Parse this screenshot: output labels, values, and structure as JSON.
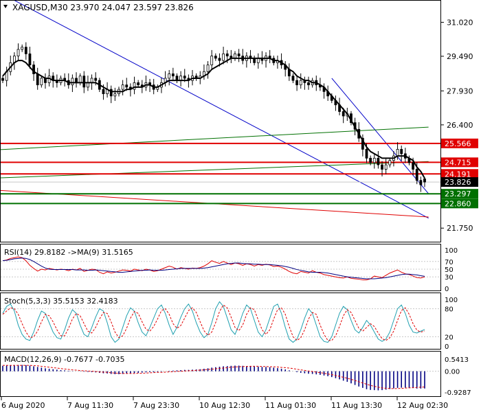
{
  "header": {
    "main": "XAGUSD,M30  23.970 24.047 23.597 23.826",
    "rsi": "RSI(14) 29.8182  ->MA(9) 31.5165",
    "stoch": "Stoch(5,3,3) 35.5153 32.4183",
    "macd": "MACD(12,26,9) -0.7677 -0.7035"
  },
  "colors": {
    "bull": "#000000",
    "bear": "#000000",
    "ma": "#000000",
    "channel": "#0000c8",
    "support_green": "#007000",
    "resistance_red": "#e00000",
    "rsi": "#e00000",
    "rsi_ma": "#000080",
    "stoch_main": "#20a0b0",
    "stoch_signal": "#e00000",
    "macd_hist": "#000080",
    "macd_signal": "#e00000",
    "grid": "#c8c8c8"
  },
  "chart_data": [
    {
      "type": "candlestick",
      "symbol": "XAGUSD",
      "timeframe": "M30",
      "ohlc_last": {
        "open": 23.97,
        "high": 24.047,
        "low": 23.597,
        "close": 23.826
      },
      "ylim": [
        21.2,
        31.9
      ],
      "y_ticks": [
        "31.020",
        "29.490",
        "27.930",
        "26.400",
        "21.750"
      ],
      "x_ticks": [
        "6 Aug 2020",
        "7 Aug 11:30",
        "7 Aug 23:30",
        "10 Aug 12:30",
        "11 Aug 01:30",
        "11 Aug 13:30",
        "12 Aug 02:30"
      ],
      "close_series": [
        28.4,
        28.8,
        29.2,
        29.5,
        29.8,
        29.9,
        29.6,
        29.1,
        28.7,
        28.2,
        28.5,
        28.3,
        28.6,
        28.4,
        28.3,
        28.5,
        28.4,
        28.2,
        28.5,
        28.3,
        28.6,
        28.1,
        28.3,
        28.5,
        28.4,
        28.0,
        27.8,
        28.0,
        27.7,
        27.8,
        28.0,
        28.2,
        28.1,
        28.0,
        28.3,
        28.2,
        28.1,
        28.3,
        28.2,
        28.0,
        28.1,
        28.3,
        28.5,
        28.7,
        28.6,
        28.4,
        28.6,
        28.5,
        28.4,
        28.6,
        28.5,
        28.6,
        28.8,
        29.1,
        29.5,
        29.4,
        29.3,
        29.6,
        29.5,
        29.4,
        29.6,
        29.5,
        29.3,
        29.5,
        29.4,
        29.2,
        29.4,
        29.3,
        29.5,
        29.4,
        29.2,
        29.3,
        29.1,
        28.9,
        28.6,
        28.4,
        28.2,
        28.4,
        28.3,
        28.2,
        28.4,
        28.2,
        28.1,
        27.9,
        27.7,
        27.5,
        27.3,
        27.0,
        26.8,
        26.9,
        26.5,
        26.2,
        25.8,
        25.3,
        24.9,
        24.7,
        24.9,
        24.6,
        24.4,
        24.6,
        24.8,
        25.0,
        25.3,
        25.1,
        24.9,
        24.7,
        24.4,
        23.9,
        23.7,
        23.826
      ],
      "ma_series": [
        28.6,
        28.8,
        29.0,
        29.2,
        29.3,
        29.3,
        29.2,
        29.0,
        28.8,
        28.7,
        28.6,
        28.5,
        28.5,
        28.4,
        28.4,
        28.4,
        28.4,
        28.3,
        28.3,
        28.3,
        28.3,
        28.3,
        28.3,
        28.3,
        28.3,
        28.2,
        28.1,
        28.0,
        27.9,
        27.9,
        27.9,
        27.9,
        28.0,
        28.0,
        28.1,
        28.1,
        28.1,
        28.2,
        28.2,
        28.1,
        28.1,
        28.2,
        28.3,
        28.4,
        28.4,
        28.4,
        28.4,
        28.4,
        28.4,
        28.5,
        28.5,
        28.5,
        28.6,
        28.7,
        28.9,
        29.0,
        29.1,
        29.2,
        29.3,
        29.4,
        29.4,
        29.4,
        29.4,
        29.4,
        29.4,
        29.4,
        29.4,
        29.4,
        29.4,
        29.4,
        29.3,
        29.3,
        29.2,
        29.1,
        28.9,
        28.8,
        28.6,
        28.5,
        28.4,
        28.4,
        28.3,
        28.3,
        28.2,
        28.1,
        27.9,
        27.7,
        27.5,
        27.3,
        27.1,
        26.9,
        26.6,
        26.3,
        26.0,
        25.7,
        25.4,
        25.2,
        25.1,
        25.0,
        24.9,
        24.9,
        24.9,
        24.9,
        25.0,
        25.0,
        25.0,
        24.9,
        24.8,
        24.5,
        24.3,
        24.0
      ],
      "levels": [
        {
          "label": "25.566",
          "value": 25.566,
          "color": "resistance_red"
        },
        {
          "label": "24.715",
          "value": 24.715,
          "color": "resistance_red"
        },
        {
          "label": "24.191",
          "value": 24.191,
          "color": "resistance_red"
        },
        {
          "label": "23.826",
          "value": 23.826,
          "color": "current"
        },
        {
          "label": "23.297",
          "value": 23.297,
          "color": "support_green"
        },
        {
          "label": "22.860",
          "value": 22.86,
          "color": "support_green"
        }
      ],
      "trendlines": [
        {
          "color": "channel",
          "from": [
            -10,
            33.2
          ],
          "to": [
            110,
            22.2
          ]
        },
        {
          "color": "channel",
          "from": [
            85,
            28.5
          ],
          "to": [
            110,
            23.3
          ]
        },
        {
          "color": "support_green",
          "from": [
            -10,
            25.2
          ],
          "to": [
            110,
            26.3
          ]
        },
        {
          "color": "support_green",
          "from": [
            -10,
            23.95
          ],
          "to": [
            110,
            24.75
          ]
        },
        {
          "color": "resistance_red",
          "from": [
            -10,
            23.55
          ],
          "to": [
            110,
            22.25
          ]
        }
      ]
    },
    {
      "type": "line",
      "name": "RSI(14)",
      "ylim": [
        0,
        100
      ],
      "y_ticks": [
        "100",
        "70",
        "50",
        "30",
        "0"
      ],
      "rsi": [
        72,
        74,
        78,
        80,
        82,
        80,
        72,
        60,
        52,
        45,
        50,
        48,
        52,
        50,
        48,
        50,
        49,
        46,
        50,
        48,
        52,
        44,
        47,
        50,
        49,
        42,
        38,
        43,
        40,
        42,
        45,
        48,
        47,
        45,
        50,
        48,
        46,
        50,
        48,
        44,
        46,
        50,
        54,
        58,
        55,
        50,
        54,
        52,
        50,
        53,
        52,
        54,
        58,
        64,
        72,
        68,
        65,
        70,
        66,
        62,
        66,
        64,
        60,
        64,
        62,
        58,
        62,
        60,
        63,
        61,
        57,
        58,
        55,
        50,
        44,
        40,
        38,
        44,
        42,
        40,
        46,
        42,
        40,
        36,
        34,
        32,
        30,
        28,
        27,
        30,
        26,
        25,
        24,
        22,
        22,
        25,
        32,
        30,
        28,
        34,
        40,
        44,
        48,
        42,
        38,
        36,
        32,
        28,
        27,
        29.8
      ],
      "ma": [
        72,
        73,
        75,
        77,
        78,
        79,
        78,
        75,
        70,
        64,
        58,
        53,
        50,
        49,
        49,
        49,
        49,
        49,
        49,
        48,
        48,
        48,
        47,
        47,
        48,
        47,
        46,
        45,
        44,
        43,
        42,
        42,
        43,
        44,
        45,
        46,
        47,
        47,
        48,
        47,
        47,
        47,
        48,
        49,
        50,
        51,
        52,
        52,
        52,
        52,
        52,
        52,
        53,
        54,
        56,
        58,
        60,
        62,
        64,
        65,
        66,
        66,
        65,
        64,
        64,
        63,
        63,
        62,
        62,
        62,
        61,
        60,
        59,
        57,
        55,
        52,
        49,
        47,
        45,
        43,
        42,
        42,
        42,
        41,
        40,
        38,
        36,
        34,
        32,
        30,
        29,
        28,
        27,
        26,
        25,
        25,
        25,
        26,
        27,
        28,
        30,
        32,
        34,
        36,
        37,
        37,
        36,
        35,
        33,
        31.5
      ]
    },
    {
      "type": "line",
      "name": "Stoch(5,3,3)",
      "ylim": [
        0,
        100
      ],
      "y_ticks": [
        "100",
        "80",
        "20",
        "0"
      ],
      "main": [
        70,
        85,
        90,
        75,
        45,
        25,
        15,
        12,
        30,
        55,
        75,
        70,
        50,
        30,
        18,
        15,
        35,
        60,
        78,
        70,
        45,
        25,
        20,
        40,
        62,
        80,
        75,
        50,
        20,
        8,
        15,
        40,
        65,
        82,
        75,
        50,
        30,
        22,
        40,
        60,
        80,
        88,
        70,
        45,
        25,
        40,
        62,
        80,
        90,
        75,
        50,
        30,
        18,
        25,
        50,
        80,
        95,
        85,
        60,
        35,
        25,
        45,
        70,
        88,
        80,
        55,
        30,
        20,
        35,
        60,
        85,
        90,
        70,
        40,
        15,
        8,
        15,
        35,
        60,
        80,
        70,
        45,
        20,
        10,
        8,
        20,
        45,
        70,
        85,
        78,
        55,
        35,
        28,
        40,
        55,
        45,
        30,
        15,
        10,
        15,
        30,
        55,
        80,
        88,
        70,
        45,
        30,
        28,
        32,
        35.5
      ],
      "signal": [
        68,
        75,
        82,
        80,
        68,
        48,
        30,
        18,
        20,
        32,
        52,
        68,
        65,
        52,
        35,
        22,
        22,
        38,
        58,
        70,
        65,
        48,
        32,
        28,
        40,
        58,
        72,
        70,
        52,
        30,
        18,
        22,
        38,
        60,
        74,
        70,
        52,
        36,
        32,
        42,
        58,
        76,
        80,
        68,
        48,
        38,
        44,
        60,
        76,
        82,
        72,
        52,
        33,
        23,
        30,
        50,
        74,
        88,
        82,
        62,
        40,
        33,
        45,
        68,
        82,
        78,
        56,
        35,
        25,
        35,
        58,
        78,
        82,
        68,
        42,
        20,
        12,
        18,
        35,
        58,
        72,
        68,
        45,
        25,
        12,
        12,
        22,
        42,
        65,
        78,
        72,
        55,
        38,
        32,
        40,
        48,
        42,
        28,
        16,
        12,
        18,
        32,
        55,
        76,
        82,
        68,
        48,
        34,
        30,
        32.4
      ]
    },
    {
      "type": "bar",
      "name": "MACD(12,26,9)",
      "ylim": [
        -1.05,
        0.6
      ],
      "y_ticks": [
        "0.5413",
        "0.00",
        "-0.9287"
      ],
      "hist": [
        0.24,
        0.25,
        0.26,
        0.27,
        0.28,
        0.28,
        0.27,
        0.25,
        0.22,
        0.19,
        0.16,
        0.13,
        0.11,
        0.09,
        0.07,
        0.05,
        0.04,
        0.02,
        0.01,
        0.0,
        -0.01,
        -0.02,
        -0.03,
        -0.04,
        -0.05,
        -0.07,
        -0.09,
        -0.1,
        -0.12,
        -0.13,
        -0.13,
        -0.12,
        -0.11,
        -0.1,
        -0.08,
        -0.07,
        -0.06,
        -0.05,
        -0.04,
        -0.04,
        -0.03,
        -0.02,
        0.0,
        0.02,
        0.03,
        0.04,
        0.05,
        0.06,
        0.06,
        0.07,
        0.08,
        0.09,
        0.11,
        0.13,
        0.16,
        0.18,
        0.2,
        0.22,
        0.23,
        0.24,
        0.25,
        0.25,
        0.24,
        0.23,
        0.22,
        0.21,
        0.2,
        0.19,
        0.19,
        0.18,
        0.16,
        0.14,
        0.11,
        0.08,
        0.04,
        0.0,
        -0.04,
        -0.07,
        -0.09,
        -0.11,
        -0.12,
        -0.14,
        -0.16,
        -0.19,
        -0.22,
        -0.26,
        -0.31,
        -0.36,
        -0.42,
        -0.47,
        -0.54,
        -0.61,
        -0.68,
        -0.74,
        -0.8,
        -0.83,
        -0.84,
        -0.85,
        -0.84,
        -0.82,
        -0.79,
        -0.76,
        -0.74,
        -0.73,
        -0.73,
        -0.74,
        -0.75,
        -0.77,
        -0.77,
        -0.7677
      ],
      "signal": [
        0.26,
        0.26,
        0.26,
        0.26,
        0.26,
        0.26,
        0.26,
        0.26,
        0.25,
        0.24,
        0.22,
        0.2,
        0.18,
        0.16,
        0.14,
        0.12,
        0.1,
        0.08,
        0.06,
        0.05,
        0.03,
        0.02,
        0.01,
        0.0,
        -0.01,
        -0.03,
        -0.04,
        -0.05,
        -0.07,
        -0.08,
        -0.09,
        -0.1,
        -0.1,
        -0.1,
        -0.1,
        -0.09,
        -0.09,
        -0.08,
        -0.07,
        -0.06,
        -0.05,
        -0.05,
        -0.04,
        -0.03,
        -0.02,
        -0.01,
        0.0,
        0.01,
        0.02,
        0.03,
        0.04,
        0.05,
        0.06,
        0.08,
        0.09,
        0.11,
        0.13,
        0.14,
        0.16,
        0.18,
        0.19,
        0.2,
        0.21,
        0.21,
        0.22,
        0.22,
        0.22,
        0.21,
        0.21,
        0.2,
        0.2,
        0.19,
        0.17,
        0.16,
        0.14,
        0.12,
        0.09,
        0.06,
        0.04,
        0.01,
        -0.01,
        -0.04,
        -0.06,
        -0.09,
        -0.12,
        -0.15,
        -0.19,
        -0.23,
        -0.27,
        -0.31,
        -0.36,
        -0.41,
        -0.47,
        -0.52,
        -0.58,
        -0.63,
        -0.67,
        -0.71,
        -0.74,
        -0.76,
        -0.77,
        -0.77,
        -0.77,
        -0.76,
        -0.75,
        -0.74,
        -0.73,
        -0.72,
        -0.71,
        -0.7035
      ]
    }
  ]
}
